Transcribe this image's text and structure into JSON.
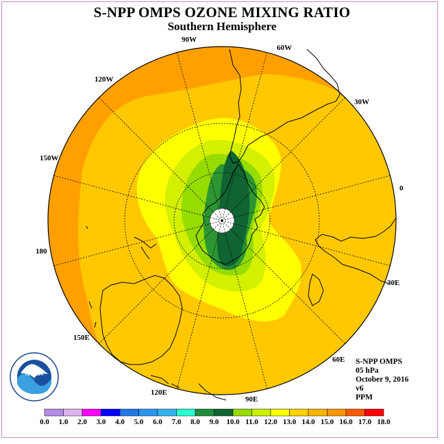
{
  "title": "S-NPP OMPS OZONE MIXING RATIO",
  "subtitle": "Southern Hemisphere",
  "info": {
    "instrument": "S-NPP OMPS",
    "level": "05 hPa",
    "date": "October 9, 2016",
    "version": "v6",
    "units": "PPM"
  },
  "logo": {
    "text": "NOAA",
    "ring_text": "NATIONAL OCEANIC AND ATMOSPHERIC ADMINISTRATION U.S. DEPARTMENT OF COMMERCE"
  },
  "longitude_labels": [
    {
      "id": "0",
      "text": "0"
    },
    {
      "id": "30E",
      "text": "30E"
    },
    {
      "id": "60E",
      "text": "60E"
    },
    {
      "id": "90E",
      "text": "90E"
    },
    {
      "id": "120E",
      "text": "120E"
    },
    {
      "id": "150E",
      "text": "150E"
    },
    {
      "id": "180",
      "text": "180"
    },
    {
      "id": "150W",
      "text": "150W"
    },
    {
      "id": "120W",
      "text": "120W"
    },
    {
      "id": "90W",
      "text": "90W"
    },
    {
      "id": "60W",
      "text": "60W"
    },
    {
      "id": "30W",
      "text": "30W"
    }
  ],
  "colorbar": {
    "ticks": [
      "0.0",
      "1.0",
      "2.0",
      "3.0",
      "4.0",
      "5.0",
      "6.0",
      "7.0",
      "8.0",
      "9.0",
      "10.0",
      "11.0",
      "12.0",
      "13.0",
      "14.0",
      "15.0",
      "16.0",
      "17.0",
      "18.0"
    ],
    "colors": [
      "#b48ce6",
      "#dcb4f0",
      "#ff00ff",
      "#0000ff",
      "#1e78e6",
      "#2896f0",
      "#32b4f0",
      "#28ffd2",
      "#1e8c3c",
      "#0f6432",
      "#96dc00",
      "#c8f000",
      "#ffff00",
      "#ffd200",
      "#ffb400",
      "#ff9600",
      "#ff5a00",
      "#ff0000",
      "#8c5a3c"
    ]
  },
  "map_colors": {
    "band_14_15": "#ffa000",
    "band_13_14": "#ffc800",
    "band_12_13": "#ffff00",
    "band_11_12": "#d2f000",
    "band_10_11": "#96dc00",
    "band_9_10": "#2d9632",
    "band_8_9": "#0f6432"
  }
}
